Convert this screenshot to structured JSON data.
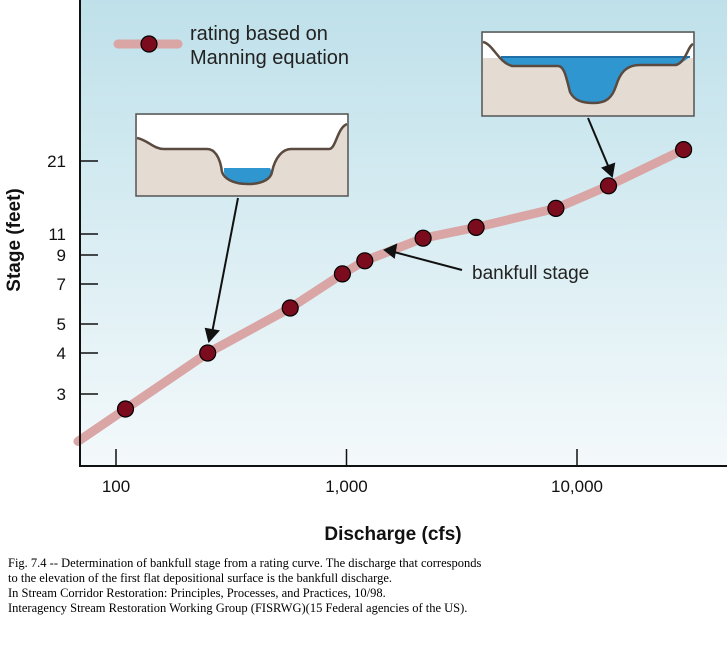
{
  "chart_data": {
    "type": "line",
    "title": "",
    "xlabel": "Discharge (cfs)",
    "ylabel": "Stage (feet)",
    "x_scale": "log",
    "y_scale": "nonlinear",
    "x_ticks": [
      100,
      1000,
      10000
    ],
    "x_tick_labels": [
      "100",
      "1,000",
      "10,000"
    ],
    "y_ticks": [
      3,
      4,
      5,
      7,
      9,
      11,
      21
    ],
    "y_tick_labels": [
      "3",
      "4",
      "5",
      "7",
      "9",
      "11",
      "21"
    ],
    "grid": false,
    "legend_position": "top-left",
    "series": [
      {
        "name": "rating based on Manning equation",
        "color": "#d9a5a5",
        "marker_color": "#7a0c1e",
        "x": [
          110,
          250,
          570,
          960,
          1200,
          2150,
          3650,
          8100,
          13700,
          29000
        ],
        "y": [
          2.75,
          4,
          5.8,
          7.7,
          8.6,
          10.6,
          11.9,
          14.5,
          17.6,
          23.5
        ]
      }
    ],
    "annotations": [
      {
        "text": "bankfull stage",
        "x": 1350,
        "y": 9.3
      }
    ]
  },
  "caption": {
    "line1": "Fig. 7.4 -- Determination of bankfull stage from a rating curve.  The discharge that corresponds",
    "line2": "to the elevation of the first flat depositional surface is the bankfull discharge.",
    "line3": "In Stream Corridor Restoration: Principles, Processes, and Practices, 10/98.",
    "line4": "Interagency Stream Restoration Working Group (FISRWG)(15 Federal agencies of the US)."
  }
}
